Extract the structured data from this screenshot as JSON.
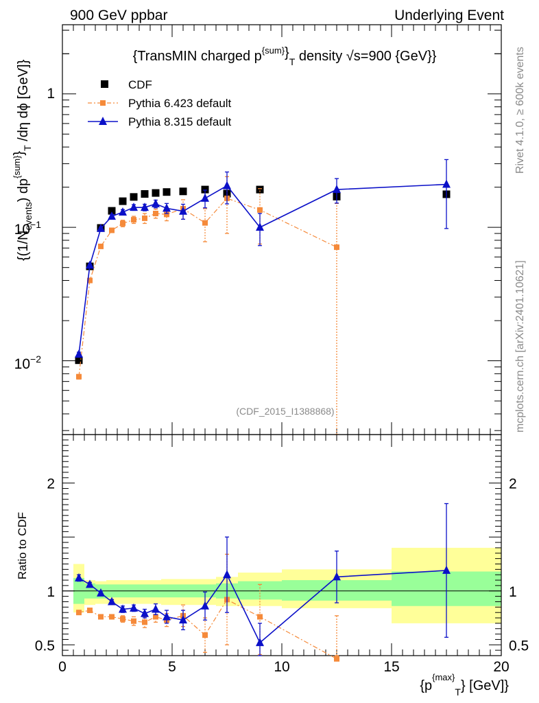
{
  "header": {
    "left": "900 GeV ppbar",
    "right": "Underlying Event"
  },
  "side_labels": {
    "rivet": "Rivet 4.1.0, ≥ 600k events",
    "mcplots": "mcplots.cern.ch [arXiv:2401.10621]"
  },
  "colors": {
    "data": "#000000",
    "pythia6": "#f58a3a",
    "pythia8": "#0b10c8",
    "band_outer": "#ffff99",
    "band_inner": "#99ff99"
  },
  "chart_data": [
    {
      "type": "scatter",
      "name": "main",
      "title": "{TransMIN charged p^{sum}_T density √s=900 {GeV}}",
      "title_parts": {
        "pre": "{TransMIN charged p",
        "sup": "{sum}",
        "sub": "T",
        "post": " density ",
        "sqrt": "√",
        "energy": "s=900 {GeV}}"
      },
      "ylabel": "{(1/N_events) dp^{sum}_T /dη  dϕ [GeV]}",
      "ylabel_parts": {
        "a": "{(1/N",
        "a_sub": "events",
        "b": ") dp",
        "b_sup": "{sum}",
        "b_mid": "}",
        "b_sub": "T",
        "c": " /dη  dϕ [GeV]}"
      },
      "yscale": "log",
      "ylim": [
        0.0028,
        3.3
      ],
      "xlim": [
        0,
        20
      ],
      "ytick_labels": {
        "one": "1",
        "minus1_base": "10",
        "minus1_exp": "−1",
        "minus2_base": "10",
        "minus2_exp": "−2"
      },
      "watermark": "(CDF_2015_I1388868)",
      "legend_position": "top-left",
      "legend": [
        "CDF",
        "Pythia 6.423 default",
        "Pythia 8.315 default"
      ],
      "x_bins": [
        [
          0.5,
          1.0
        ],
        [
          1.0,
          1.5
        ],
        [
          1.5,
          2.0
        ],
        [
          2.0,
          2.5
        ],
        [
          2.5,
          3.0
        ],
        [
          3.0,
          3.5
        ],
        [
          3.5,
          4.0
        ],
        [
          4.0,
          4.5
        ],
        [
          4.5,
          5.0
        ],
        [
          5.0,
          6.0
        ],
        [
          6.0,
          7.0
        ],
        [
          7.0,
          8.0
        ],
        [
          8.0,
          10.0
        ],
        [
          10.0,
          15.0
        ],
        [
          15.0,
          20.0
        ]
      ],
      "x": [
        0.75,
        1.25,
        1.75,
        2.25,
        2.75,
        3.25,
        3.75,
        4.25,
        4.75,
        5.5,
        6.5,
        7.5,
        9.0,
        12.5,
        17.5
      ],
      "series": [
        {
          "name": "CDF",
          "values": [
            0.0101,
            0.051,
            0.099,
            0.133,
            0.157,
            0.169,
            0.178,
            0.181,
            0.184,
            0.186,
            0.192,
            0.179,
            0.192,
            0.17,
            0.177
          ]
        },
        {
          "name": "Pythia 6.423 default",
          "values": [
            0.0076,
            0.04,
            0.072,
            0.095,
            0.107,
            0.114,
            0.117,
            0.127,
            0.125,
            0.138,
            0.108,
            0.165,
            0.135,
            0.071,
            null
          ],
          "err_lo": [
            0.0003,
            0.001,
            0.002,
            0.003,
            0.006,
            0.007,
            0.01,
            0.01,
            0.013,
            0.023,
            0.03,
            0.075,
            0.06,
            0.071,
            null
          ],
          "err_hi": [
            0.0003,
            0.001,
            0.002,
            0.003,
            0.006,
            0.007,
            0.01,
            0.01,
            0.013,
            0.023,
            0.03,
            0.075,
            0.06,
            0.08,
            null
          ]
        },
        {
          "name": "Pythia 8.315 default",
          "values": [
            0.0112,
            0.052,
            0.098,
            0.121,
            0.13,
            0.141,
            0.141,
            0.15,
            0.139,
            0.132,
            0.165,
            0.205,
            0.1,
            0.192,
            0.21
          ],
          "err_lo": [
            0.0004,
            0.001,
            0.002,
            0.004,
            0.006,
            0.007,
            0.008,
            0.01,
            0.012,
            0.017,
            0.025,
            0.055,
            0.027,
            0.04,
            0.112
          ],
          "err_hi": [
            0.0004,
            0.001,
            0.002,
            0.004,
            0.006,
            0.007,
            0.008,
            0.01,
            0.012,
            0.017,
            0.025,
            0.055,
            0.027,
            0.04,
            0.112
          ]
        }
      ]
    },
    {
      "type": "scatter",
      "name": "ratio",
      "ylabel": "Ratio to CDF",
      "xlabel": "{p^{max}_T} [GeV]}",
      "xlabel_parts": {
        "pre": "{p",
        "sup": "{max}",
        "sub": "T",
        "post": "} [GeV]}"
      },
      "ylim": [
        0.4,
        2.45
      ],
      "xlim": [
        0,
        20
      ],
      "ytick_labels": [
        "0.5",
        "1",
        "2"
      ],
      "xtick_labels": [
        "0",
        "5",
        "10",
        "15",
        "20"
      ],
      "band_inner": [
        [
          0.88,
          1.12
        ],
        [
          0.93,
          1.07
        ],
        [
          0.93,
          1.06
        ],
        [
          0.94,
          1.06
        ],
        [
          0.94,
          1.06
        ],
        [
          0.94,
          1.06
        ],
        [
          0.94,
          1.06
        ],
        [
          0.94,
          1.06
        ],
        [
          0.94,
          1.06
        ],
        [
          0.94,
          1.06
        ],
        [
          0.94,
          1.06
        ],
        [
          0.93,
          1.07
        ],
        [
          0.92,
          1.09
        ],
        [
          0.91,
          1.1
        ],
        [
          0.86,
          1.18
        ]
      ],
      "band_outer": [
        [
          0.8,
          1.25
        ],
        [
          0.87,
          1.1
        ],
        [
          0.88,
          1.09
        ],
        [
          0.88,
          1.1
        ],
        [
          0.88,
          1.1
        ],
        [
          0.88,
          1.1
        ],
        [
          0.88,
          1.1
        ],
        [
          0.88,
          1.1
        ],
        [
          0.87,
          1.11
        ],
        [
          0.87,
          1.11
        ],
        [
          0.87,
          1.11
        ],
        [
          0.86,
          1.13
        ],
        [
          0.86,
          1.17
        ],
        [
          0.84,
          1.2
        ],
        [
          0.7,
          1.4
        ]
      ],
      "series": [
        {
          "name": "Pythia 6.423 default",
          "values": [
            0.8,
            0.82,
            0.76,
            0.76,
            0.74,
            0.72,
            0.71,
            0.76,
            0.73,
            0.77,
            0.59,
            0.92,
            0.76,
            0.37,
            null
          ],
          "err_lo": [
            0.02,
            0.02,
            0.01,
            0.02,
            0.03,
            0.04,
            0.05,
            0.05,
            0.06,
            0.1,
            0.16,
            0.42,
            0.35,
            0.37,
            null
          ],
          "err_hi": [
            0.02,
            0.02,
            0.01,
            0.02,
            0.03,
            0.04,
            0.05,
            0.05,
            0.06,
            0.1,
            0.16,
            0.42,
            0.3,
            0.4,
            null
          ]
        },
        {
          "name": "Pythia 8.315 default",
          "values": [
            1.12,
            1.06,
            0.98,
            0.9,
            0.83,
            0.84,
            0.79,
            0.83,
            0.76,
            0.73,
            0.86,
            1.15,
            0.52,
            1.13,
            1.19
          ],
          "err_lo": [
            0.03,
            0.02,
            0.02,
            0.02,
            0.03,
            0.03,
            0.04,
            0.05,
            0.06,
            0.09,
            0.13,
            0.35,
            0.18,
            0.24,
            0.62
          ],
          "err_hi": [
            0.03,
            0.02,
            0.02,
            0.02,
            0.03,
            0.03,
            0.04,
            0.05,
            0.06,
            0.09,
            0.13,
            0.35,
            0.18,
            0.24,
            0.62
          ]
        }
      ]
    }
  ]
}
